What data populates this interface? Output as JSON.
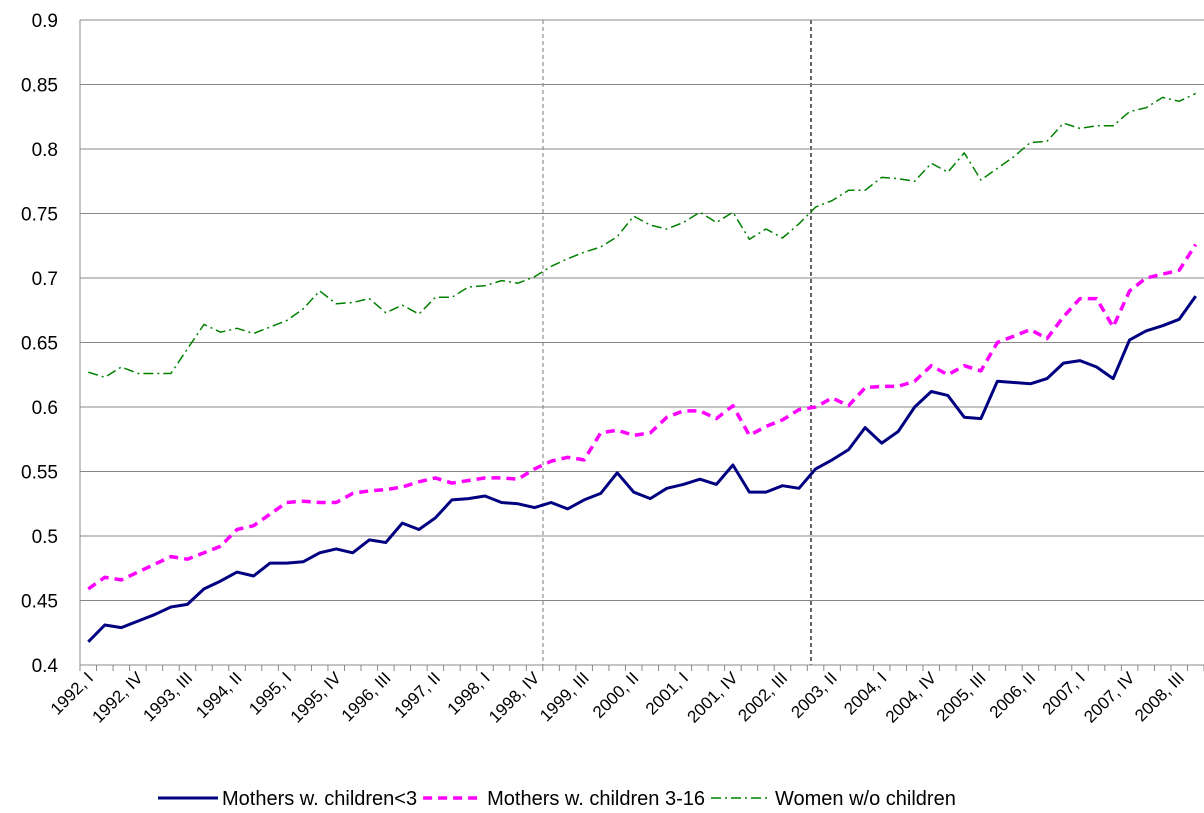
{
  "chart_data": {
    "type": "line",
    "categories": [
      "1992, I",
      null,
      null,
      "1992, IV",
      null,
      null,
      "1993, III",
      null,
      null,
      "1994, II",
      null,
      null,
      "1995, I",
      null,
      null,
      "1995, IV",
      null,
      null,
      "1996, III",
      null,
      null,
      "1997, II",
      null,
      null,
      "1998, I",
      null,
      null,
      "1998, IV",
      null,
      null,
      "1999, III",
      null,
      null,
      "2000, II",
      null,
      null,
      "2001, I",
      null,
      null,
      "2001, IV",
      null,
      null,
      "2002, III",
      null,
      null,
      "2003, II",
      null,
      null,
      "2004, I",
      null,
      null,
      "2004, IV",
      null,
      null,
      "2005, III",
      null,
      null,
      "2006, II",
      null,
      null,
      "2007, I",
      null,
      null,
      "2007, IV",
      null,
      null,
      "2008, III",
      null
    ],
    "series": [
      {
        "name": "Mothers w. children<3",
        "color": "#000080",
        "line_style": "solid",
        "values": [
          0.418,
          0.431,
          0.429,
          0.434,
          0.439,
          0.445,
          0.447,
          0.459,
          0.465,
          0.472,
          0.469,
          0.479,
          0.479,
          0.48,
          0.487,
          0.49,
          0.487,
          0.497,
          0.495,
          0.51,
          0.505,
          0.514,
          0.528,
          0.529,
          0.531,
          0.526,
          0.525,
          0.522,
          0.526,
          0.521,
          0.528,
          0.533,
          0.549,
          0.534,
          0.529,
          0.537,
          0.54,
          0.544,
          0.54,
          0.555,
          0.534,
          0.534,
          0.539,
          0.537,
          0.552,
          0.559,
          0.567,
          0.584,
          0.572,
          0.581,
          0.6,
          0.612,
          0.609,
          0.592,
          0.591,
          0.62,
          0.619,
          0.618,
          0.622,
          0.634,
          0.636,
          0.631,
          0.622,
          0.652,
          0.659,
          0.663,
          0.668,
          0.686
        ]
      },
      {
        "name": "Mothers w. children 3-16",
        "color": "#ff00ff",
        "line_style": "dashed",
        "values": [
          0.459,
          0.468,
          0.466,
          0.472,
          0.478,
          0.484,
          0.482,
          0.487,
          0.492,
          0.505,
          0.508,
          0.517,
          0.526,
          0.527,
          0.526,
          0.526,
          0.533,
          0.535,
          0.536,
          0.538,
          0.542,
          0.545,
          0.541,
          0.543,
          0.545,
          0.545,
          0.544,
          0.552,
          0.558,
          0.561,
          0.559,
          0.58,
          0.582,
          0.578,
          0.58,
          0.592,
          0.597,
          0.597,
          0.591,
          0.601,
          0.578,
          0.585,
          0.59,
          0.598,
          0.6,
          0.607,
          0.601,
          0.615,
          0.616,
          0.616,
          0.62,
          0.632,
          0.625,
          0.632,
          0.628,
          0.65,
          0.655,
          0.66,
          0.653,
          0.67,
          0.684,
          0.684,
          0.662,
          0.69,
          0.7,
          0.703,
          0.706,
          0.726
        ]
      },
      {
        "name": "Women w/o children",
        "color": "#008000",
        "line_style": "dashdot",
        "values": [
          0.627,
          0.623,
          0.631,
          0.626,
          0.626,
          0.626,
          0.645,
          0.664,
          0.658,
          0.661,
          0.657,
          0.662,
          0.667,
          0.676,
          0.69,
          0.68,
          0.681,
          0.684,
          0.673,
          0.679,
          0.672,
          0.685,
          0.685,
          0.693,
          0.694,
          0.698,
          0.696,
          0.701,
          0.709,
          0.715,
          0.72,
          0.724,
          0.732,
          0.748,
          0.741,
          0.738,
          0.743,
          0.751,
          0.743,
          0.751,
          0.73,
          0.738,
          0.731,
          0.742,
          0.755,
          0.76,
          0.768,
          0.768,
          0.778,
          0.777,
          0.775,
          0.789,
          0.782,
          0.797,
          0.776,
          0.785,
          0.794,
          0.805,
          0.806,
          0.82,
          0.816,
          0.818,
          0.818,
          0.829,
          0.832,
          0.84,
          0.837,
          0.843
        ]
      }
    ],
    "ylim": [
      0.4,
      0.9
    ],
    "yticks": [
      0.4,
      0.45,
      0.5,
      0.55,
      0.6,
      0.65,
      0.7,
      0.75,
      0.8,
      0.85,
      0.9
    ],
    "grid": true,
    "legend": "bottom"
  }
}
